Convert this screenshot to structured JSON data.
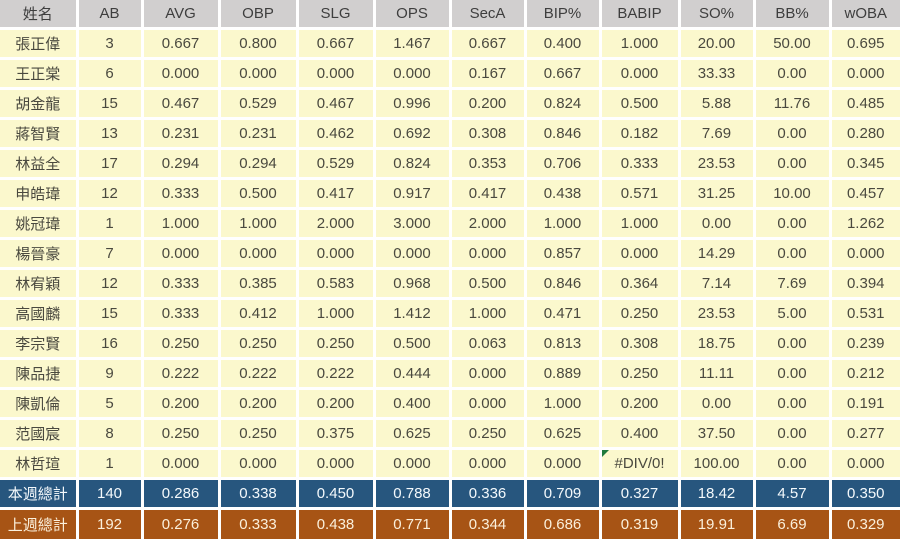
{
  "colors": {
    "header_bg": "#D1CFCF",
    "header_text": "#3E3E3E",
    "cell_bg": "#FBF8CD",
    "cell_text": "#4A493F",
    "grid_line": "#FFFFFF",
    "this_week_bg": "#27567E",
    "this_week_text": "#F4F9FC",
    "last_week_bg": "#A75415",
    "last_week_text": "#FBF0DC",
    "error_indicator_green": "#1F7A3C"
  },
  "table": {
    "columns": [
      "姓名",
      "AB",
      "AVG",
      "OBP",
      "SLG",
      "OPS",
      "SecA",
      "BIP%",
      "BABIP",
      "SO%",
      "BB%",
      "wOBA"
    ],
    "rows": [
      {
        "name": "張正偉",
        "values": [
          "3",
          "0.667",
          "0.800",
          "0.667",
          "1.467",
          "0.667",
          "0.400",
          "1.000",
          "20.00",
          "50.00",
          "0.695"
        ]
      },
      {
        "name": "王正棠",
        "values": [
          "6",
          "0.000",
          "0.000",
          "0.000",
          "0.000",
          "0.167",
          "0.667",
          "0.000",
          "33.33",
          "0.00",
          "0.000"
        ]
      },
      {
        "name": "胡金龍",
        "values": [
          "15",
          "0.467",
          "0.529",
          "0.467",
          "0.996",
          "0.200",
          "0.824",
          "0.500",
          "5.88",
          "11.76",
          "0.485"
        ]
      },
      {
        "name": "蔣智賢",
        "values": [
          "13",
          "0.231",
          "0.231",
          "0.462",
          "0.692",
          "0.308",
          "0.846",
          "0.182",
          "7.69",
          "0.00",
          "0.280"
        ]
      },
      {
        "name": "林益全",
        "values": [
          "17",
          "0.294",
          "0.294",
          "0.529",
          "0.824",
          "0.353",
          "0.706",
          "0.333",
          "23.53",
          "0.00",
          "0.345"
        ]
      },
      {
        "name": "申皓瑋",
        "values": [
          "12",
          "0.333",
          "0.500",
          "0.417",
          "0.917",
          "0.417",
          "0.438",
          "0.571",
          "31.25",
          "10.00",
          "0.457"
        ]
      },
      {
        "name": "姚冠瑋",
        "values": [
          "1",
          "1.000",
          "1.000",
          "2.000",
          "3.000",
          "2.000",
          "1.000",
          "1.000",
          "0.00",
          "0.00",
          "1.262"
        ]
      },
      {
        "name": "楊晉豪",
        "values": [
          "7",
          "0.000",
          "0.000",
          "0.000",
          "0.000",
          "0.000",
          "0.857",
          "0.000",
          "14.29",
          "0.00",
          "0.000"
        ]
      },
      {
        "name": "林宥穎",
        "values": [
          "12",
          "0.333",
          "0.385",
          "0.583",
          "0.968",
          "0.500",
          "0.846",
          "0.364",
          "7.14",
          "7.69",
          "0.394"
        ]
      },
      {
        "name": "高國麟",
        "values": [
          "15",
          "0.333",
          "0.412",
          "1.000",
          "1.412",
          "1.000",
          "0.471",
          "0.250",
          "23.53",
          "5.00",
          "0.531"
        ]
      },
      {
        "name": "李宗賢",
        "values": [
          "16",
          "0.250",
          "0.250",
          "0.250",
          "0.500",
          "0.063",
          "0.813",
          "0.308",
          "18.75",
          "0.00",
          "0.239"
        ]
      },
      {
        "name": "陳品捷",
        "values": [
          "9",
          "0.222",
          "0.222",
          "0.222",
          "0.444",
          "0.000",
          "0.889",
          "0.250",
          "11.11",
          "0.00",
          "0.212"
        ]
      },
      {
        "name": "陳凱倫",
        "values": [
          "5",
          "0.200",
          "0.200",
          "0.200",
          "0.400",
          "0.000",
          "1.000",
          "0.200",
          "0.00",
          "0.00",
          "0.191"
        ]
      },
      {
        "name": "范國宸",
        "values": [
          "8",
          "0.250",
          "0.250",
          "0.375",
          "0.625",
          "0.250",
          "0.625",
          "0.400",
          "37.50",
          "0.00",
          "0.277"
        ]
      },
      {
        "name": "林哲瑄",
        "values": [
          "1",
          "0.000",
          "0.000",
          "0.000",
          "0.000",
          "0.000",
          "0.000",
          "#DIV/0!",
          "100.00",
          "0.00",
          "0.000"
        ],
        "error_value_index": 7
      }
    ],
    "summary_rows": [
      {
        "label": "本週總計",
        "theme": "this_week",
        "values": [
          "140",
          "0.286",
          "0.338",
          "0.450",
          "0.788",
          "0.336",
          "0.709",
          "0.327",
          "18.42",
          "4.57",
          "0.350"
        ]
      },
      {
        "label": "上週總計",
        "theme": "last_week",
        "values": [
          "192",
          "0.276",
          "0.333",
          "0.438",
          "0.771",
          "0.344",
          "0.686",
          "0.319",
          "19.91",
          "6.69",
          "0.329"
        ]
      }
    ]
  }
}
